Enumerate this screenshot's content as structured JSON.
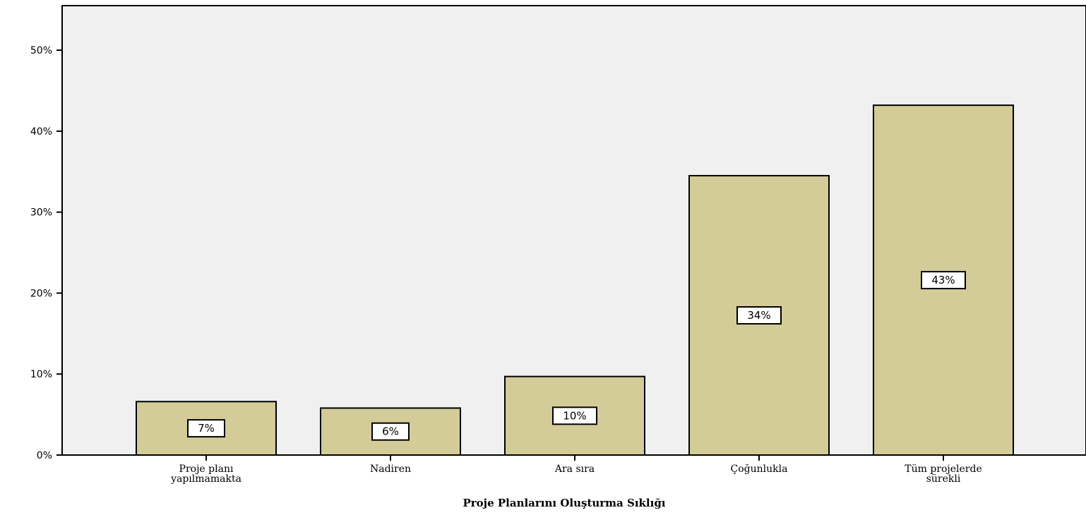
{
  "chart_data": {
    "type": "bar",
    "title": "",
    "xlabel": "Proje Planlarını Oluşturma Sıklığı",
    "ylabel": "",
    "categories": [
      [
        "Proje planı",
        "yapılmamakta"
      ],
      [
        "Nadiren"
      ],
      [
        "Ara sıra"
      ],
      [
        "Çoğunlukla"
      ],
      [
        "Tüm projelerde",
        "sürekli"
      ]
    ],
    "values": [
      6.6,
      5.8,
      9.7,
      34.5,
      43.2
    ],
    "data_labels": [
      "7%",
      "6%",
      "10%",
      "34%",
      "43%"
    ],
    "ylim": [
      0,
      55.5
    ],
    "yticks": [
      0,
      10,
      20,
      30,
      40,
      50
    ],
    "ytick_labels": [
      "0%",
      "10%",
      "20%",
      "30%",
      "40%",
      "50%"
    ],
    "grid": false,
    "legend": "none",
    "colors": {
      "bar_fill": "#d3cc98",
      "plot_bg": "#f0f0f0",
      "axis": "#000000",
      "label_box_fill": "#ffffff"
    }
  }
}
